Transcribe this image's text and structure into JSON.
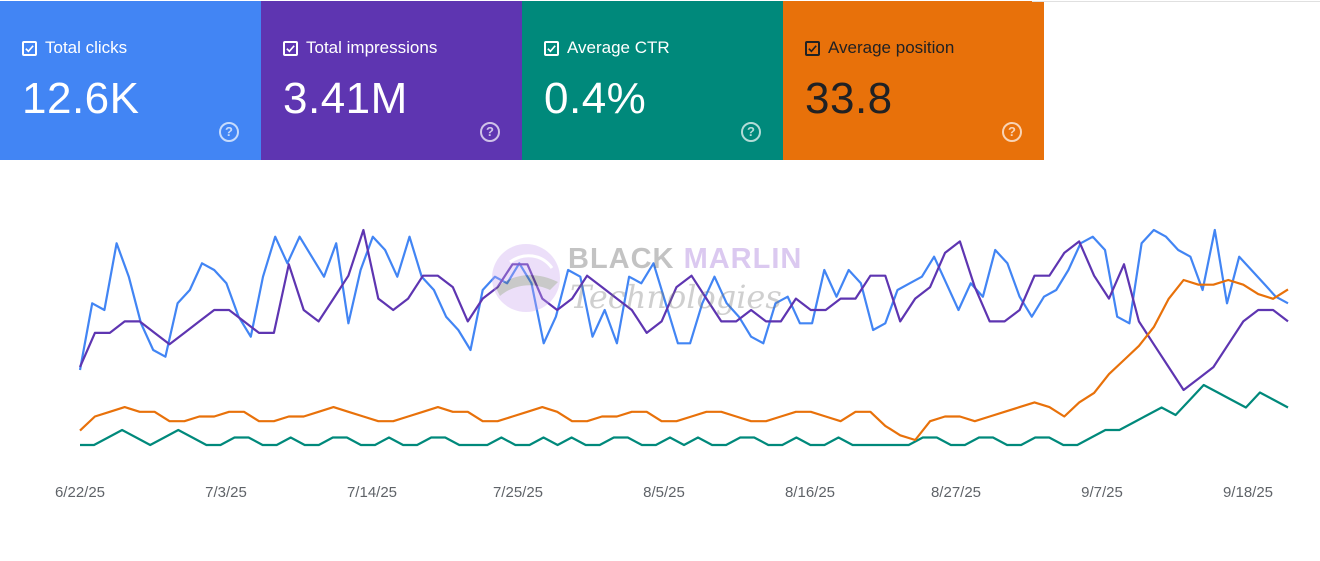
{
  "metrics": [
    {
      "key": "clicks",
      "label": "Total clicks",
      "value": "12.6K",
      "color": "#4285f4",
      "checked": true
    },
    {
      "key": "impressions",
      "label": "Total impressions",
      "value": "3.41M",
      "color": "#5e35b1",
      "checked": true
    },
    {
      "key": "ctr",
      "label": "Average CTR",
      "value": "0.4%",
      "color": "#00897b",
      "checked": true
    },
    {
      "key": "position",
      "label": "Average position",
      "value": "33.8",
      "color": "#e8710a",
      "checked": true
    }
  ],
  "watermark": {
    "line1a": "BLACK",
    "line1b": "MARLIN",
    "line2": "Technologies"
  },
  "icons": {
    "checkbox": "checkbox-checked-icon",
    "help": "help-icon"
  },
  "chart_data": {
    "type": "line",
    "x_labels": [
      "6/22/25",
      "7/3/25",
      "7/14/25",
      "7/25/25",
      "8/5/25",
      "8/16/25",
      "8/27/25",
      "9/7/25",
      "9/18/25"
    ],
    "axes_visible": false,
    "grid": false,
    "series": [
      {
        "name": "Total clicks",
        "color": "#4285f4",
        "values": [
          200,
          250,
          245,
          295,
          270,
          235,
          215,
          210,
          250,
          260,
          280,
          275,
          265,
          240,
          225,
          270,
          300,
          280,
          300,
          285,
          270,
          295,
          235,
          275,
          300,
          290,
          270,
          300,
          270,
          260,
          240,
          230,
          215,
          260,
          270,
          265,
          280,
          265,
          220,
          240,
          275,
          270,
          225,
          245,
          220,
          270,
          265,
          280,
          250,
          220,
          220,
          250,
          270,
          250,
          240,
          225,
          220,
          250,
          255,
          235,
          235,
          275,
          255,
          275,
          265,
          230,
          235,
          260,
          265,
          270,
          285,
          265,
          245,
          265,
          255,
          290,
          280,
          255,
          240,
          255,
          260,
          275,
          295,
          300,
          290,
          240,
          235,
          295,
          305,
          300,
          290,
          285,
          260,
          305,
          250,
          285,
          275,
          265,
          255,
          250
        ]
      },
      {
        "name": "Total impressions",
        "color": "#5e35b1",
        "values": [
          220,
          235,
          235,
          240,
          240,
          235,
          230,
          235,
          240,
          245,
          245,
          240,
          235,
          235,
          265,
          245,
          240,
          250,
          260,
          280,
          250,
          245,
          250,
          260,
          260,
          255,
          240,
          250,
          255,
          265,
          265,
          250,
          245,
          250,
          260,
          255,
          250,
          245,
          235,
          240,
          255,
          260,
          250,
          240,
          240,
          245,
          240,
          240,
          250,
          245,
          245,
          250,
          250,
          260,
          260,
          240,
          250,
          255,
          270,
          275,
          255,
          240,
          240,
          245,
          260,
          260,
          270,
          275,
          260,
          250,
          265,
          240,
          230,
          220,
          210,
          215,
          220,
          230,
          240,
          245,
          245,
          240
        ]
      },
      {
        "name": "Average CTR",
        "color": "#00897b",
        "values": [
          5,
          5,
          6,
          7,
          6,
          5,
          6,
          7,
          6,
          5,
          5,
          6,
          6,
          5,
          5,
          6,
          5,
          5,
          6,
          6,
          5,
          5,
          6,
          5,
          5,
          6,
          6,
          5,
          5,
          5,
          6,
          5,
          5,
          6,
          5,
          6,
          5,
          5,
          6,
          6,
          5,
          5,
          6,
          5,
          6,
          5,
          5,
          6,
          6,
          5,
          5,
          6,
          5,
          5,
          6,
          5,
          5,
          5,
          5,
          5,
          6,
          6,
          5,
          5,
          6,
          6,
          5,
          5,
          6,
          6,
          5,
          5,
          6,
          7,
          7,
          8,
          9,
          10,
          9,
          11,
          13,
          12,
          11,
          10,
          12,
          11,
          10
        ]
      },
      {
        "name": "Average position",
        "color": "#e8710a",
        "values": [
          40,
          43,
          44,
          45,
          44,
          44,
          42,
          42,
          43,
          43,
          44,
          44,
          42,
          42,
          43,
          43,
          44,
          45,
          44,
          43,
          42,
          42,
          43,
          44,
          45,
          44,
          44,
          42,
          42,
          43,
          44,
          45,
          44,
          42,
          42,
          43,
          43,
          44,
          44,
          42,
          42,
          43,
          44,
          44,
          43,
          42,
          42,
          43,
          44,
          44,
          43,
          42,
          44,
          44,
          41,
          39,
          38,
          42,
          43,
          43,
          42,
          43,
          44,
          45,
          46,
          45,
          43,
          46,
          48,
          52,
          55,
          58,
          62,
          68,
          72,
          71,
          71,
          72,
          71,
          69,
          68,
          70
        ]
      }
    ]
  }
}
